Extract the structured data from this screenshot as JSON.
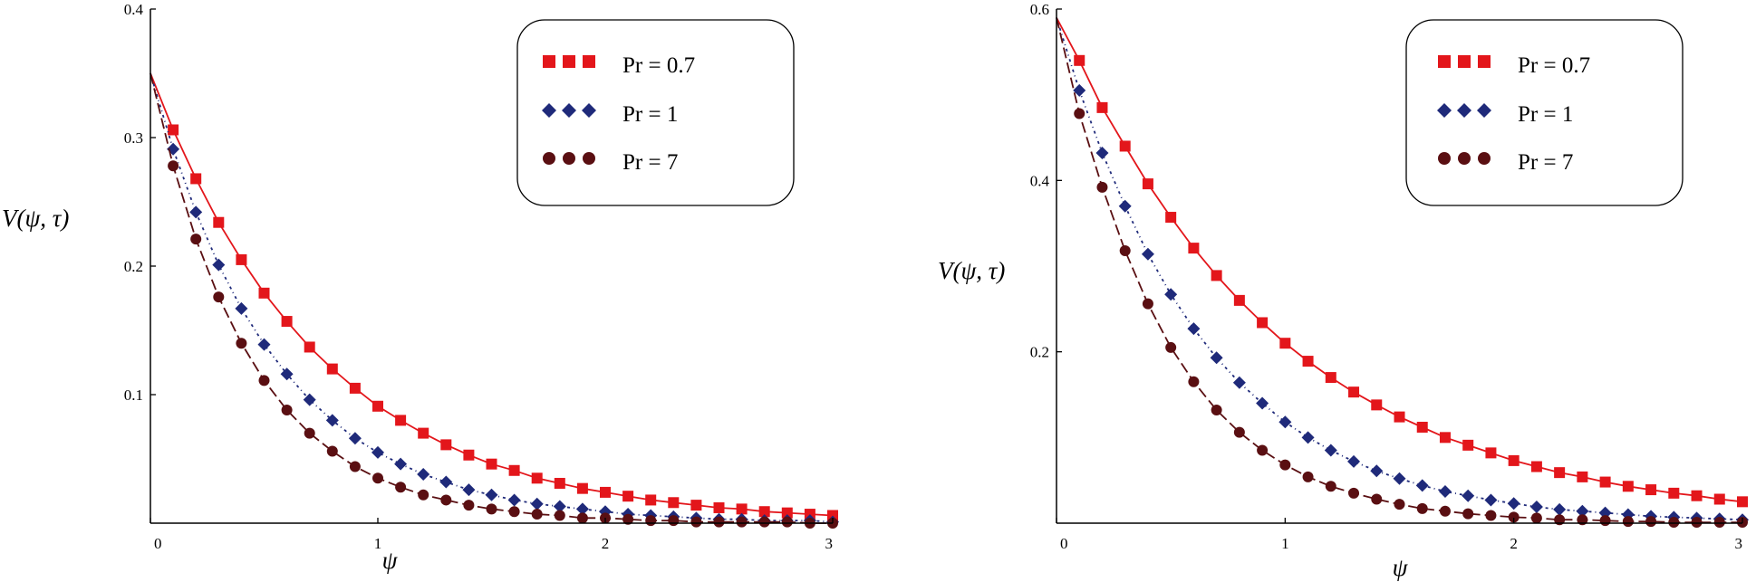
{
  "colors": {
    "pr07": "#e3161b",
    "pr1": "#1f2a7a",
    "pr7": "#5a0f12",
    "axis": "#000000"
  },
  "legend": {
    "entries": [
      "Pr = 0.7",
      "Pr = 1",
      "Pr = 7"
    ]
  },
  "chart_data": [
    {
      "type": "line",
      "title": "",
      "xlabel": "ψ",
      "ylabel": "V(ψ, τ)",
      "xlim": [
        0,
        3
      ],
      "ylim": [
        0,
        0.4
      ],
      "xticks": [
        0,
        1,
        2,
        3
      ],
      "yticks": [
        0.1,
        0.2,
        0.3,
        0.4
      ],
      "xtick_labels": [
        "0",
        "1",
        "2",
        "3"
      ],
      "ytick_labels": [
        "0.1",
        "0.2",
        "0.3",
        "0.4"
      ],
      "legend_position": "top-right",
      "x": [
        0,
        0.1,
        0.2,
        0.3,
        0.4,
        0.5,
        0.6,
        0.7,
        0.8,
        0.9,
        1.0,
        1.1,
        1.2,
        1.3,
        1.4,
        1.5,
        1.6,
        1.7,
        1.8,
        1.9,
        2.0,
        2.1,
        2.2,
        2.3,
        2.4,
        2.5,
        2.6,
        2.7,
        2.8,
        2.9,
        3.0
      ],
      "series": [
        {
          "name": "Pr = 0.7",
          "color_key": "pr07",
          "marker": "square",
          "line": "solid",
          "values": [
            0.35,
            0.306,
            0.268,
            0.234,
            0.205,
            0.179,
            0.157,
            0.137,
            0.12,
            0.105,
            0.091,
            0.08,
            0.07,
            0.061,
            0.053,
            0.046,
            0.041,
            0.035,
            0.031,
            0.027,
            0.024,
            0.021,
            0.018,
            0.016,
            0.014,
            0.012,
            0.011,
            0.009,
            0.008,
            0.007,
            0.006
          ]
        },
        {
          "name": "Pr = 1",
          "color_key": "pr1",
          "marker": "diamond",
          "line": "dashdot",
          "values": [
            0.35,
            0.291,
            0.242,
            0.201,
            0.167,
            0.139,
            0.116,
            0.096,
            0.08,
            0.066,
            0.055,
            0.046,
            0.038,
            0.032,
            0.026,
            0.022,
            0.018,
            0.015,
            0.013,
            0.011,
            0.009,
            0.007,
            0.006,
            0.005,
            0.004,
            0.003,
            0.003,
            0.002,
            0.002,
            0.002,
            0.001
          ]
        },
        {
          "name": "Pr = 7",
          "color_key": "pr7",
          "marker": "circle",
          "line": "longdash",
          "values": [
            0.35,
            0.278,
            0.221,
            0.176,
            0.14,
            0.111,
            0.088,
            0.07,
            0.056,
            0.044,
            0.035,
            0.028,
            0.022,
            0.018,
            0.014,
            0.011,
            0.009,
            0.007,
            0.006,
            0.004,
            0.004,
            0.003,
            0.002,
            0.002,
            0.001,
            0.001,
            0.001,
            0.001,
            0.001,
            0.0,
            0.0
          ]
        }
      ]
    },
    {
      "type": "line",
      "title": "",
      "xlabel": "ψ",
      "ylabel": "V(ψ, τ)",
      "xlim": [
        0,
        3
      ],
      "ylim": [
        0,
        0.6
      ],
      "xticks": [
        0,
        1,
        2,
        3
      ],
      "yticks": [
        0.2,
        0.4,
        0.6
      ],
      "xtick_labels": [
        "0",
        "1",
        "2",
        "3"
      ],
      "ytick_labels": [
        "0.2",
        "0.4",
        "0.6"
      ],
      "legend_position": "top-right",
      "x": [
        0,
        0.1,
        0.2,
        0.3,
        0.4,
        0.5,
        0.6,
        0.7,
        0.8,
        0.9,
        1.0,
        1.1,
        1.2,
        1.3,
        1.4,
        1.5,
        1.6,
        1.7,
        1.8,
        1.9,
        2.0,
        2.1,
        2.2,
        2.3,
        2.4,
        2.5,
        2.6,
        2.7,
        2.8,
        2.9,
        3.0
      ],
      "series": [
        {
          "name": "Pr = 0.7",
          "color_key": "pr07",
          "marker": "square",
          "line": "solid",
          "values": [
            0.59,
            0.54,
            0.485,
            0.44,
            0.396,
            0.357,
            0.321,
            0.289,
            0.26,
            0.234,
            0.21,
            0.189,
            0.17,
            0.153,
            0.138,
            0.124,
            0.112,
            0.1,
            0.091,
            0.082,
            0.073,
            0.066,
            0.059,
            0.054,
            0.048,
            0.043,
            0.039,
            0.035,
            0.032,
            0.028,
            0.025
          ]
        },
        {
          "name": "Pr = 1",
          "color_key": "pr1",
          "marker": "diamond",
          "line": "dashdot",
          "values": [
            0.59,
            0.505,
            0.432,
            0.37,
            0.314,
            0.267,
            0.227,
            0.193,
            0.164,
            0.14,
            0.118,
            0.1,
            0.085,
            0.072,
            0.061,
            0.052,
            0.044,
            0.037,
            0.032,
            0.027,
            0.023,
            0.019,
            0.016,
            0.014,
            0.012,
            0.01,
            0.008,
            0.007,
            0.006,
            0.005,
            0.004
          ]
        },
        {
          "name": "Pr = 7",
          "color_key": "pr7",
          "marker": "circle",
          "line": "longdash",
          "values": [
            0.59,
            0.478,
            0.392,
            0.318,
            0.256,
            0.205,
            0.165,
            0.132,
            0.106,
            0.085,
            0.068,
            0.054,
            0.043,
            0.035,
            0.028,
            0.022,
            0.017,
            0.014,
            0.011,
            0.009,
            0.007,
            0.006,
            0.004,
            0.004,
            0.003,
            0.002,
            0.002,
            0.001,
            0.001,
            0.001,
            0.001
          ]
        }
      ]
    }
  ]
}
